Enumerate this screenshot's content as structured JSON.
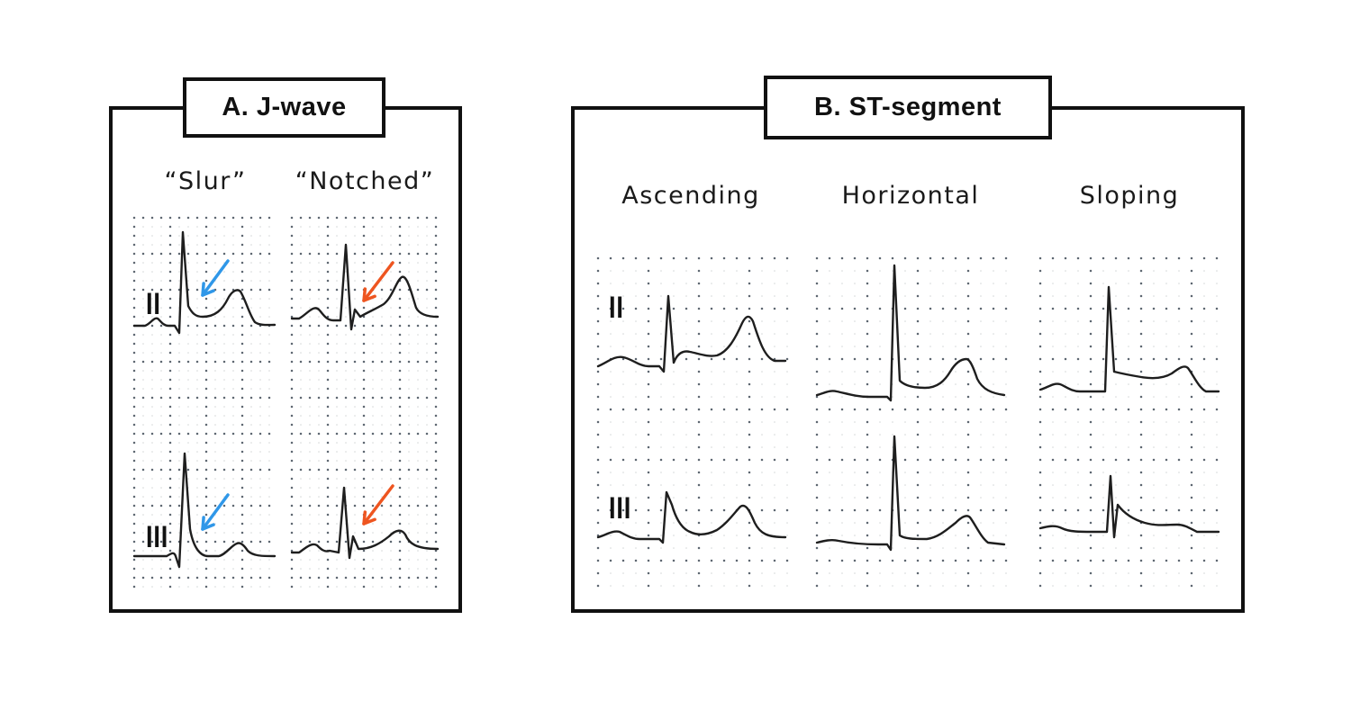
{
  "panels": {
    "a": {
      "title": "A. J-wave",
      "columns": [
        {
          "id": "slur",
          "label": "“Slur”",
          "arrow_color": "#2f97e8"
        },
        {
          "id": "notched",
          "label": "“Notched”",
          "arrow_color": "#ee5520"
        }
      ],
      "leads": [
        "II",
        "III"
      ]
    },
    "b": {
      "title": "B. ST-segment",
      "columns": [
        {
          "id": "ascending",
          "label": "Ascending"
        },
        {
          "id": "horizontal",
          "label": "Horizontal"
        },
        {
          "id": "sloping",
          "label": "Sloping"
        }
      ],
      "leads": [
        "II",
        "III"
      ]
    }
  },
  "colors": {
    "border": "#111111",
    "trace": "#1e1e1e",
    "grid_dots": "#5c6670",
    "slur_arrow": "#2f97e8",
    "notched_arrow": "#ee5520"
  }
}
